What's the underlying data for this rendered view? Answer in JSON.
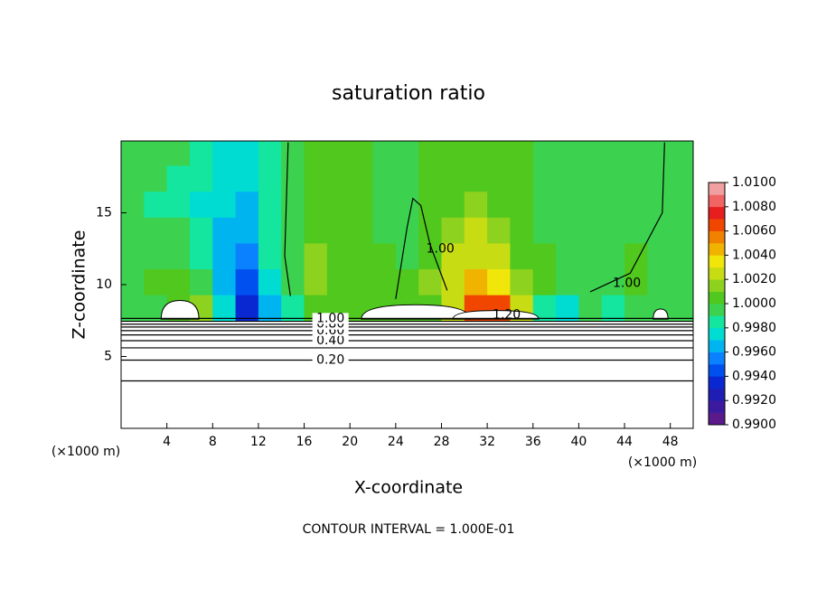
{
  "chart_data": {
    "type": "contour",
    "title": "saturation ratio",
    "x_label": "X-coordinate",
    "y_label": "Z-coordinate",
    "x_unit": "(×1000 m)",
    "y_unit": "(×1000 m)",
    "footer": "CONTOUR INTERVAL = 1.000E-01",
    "xlim": [
      0,
      50
    ],
    "ylim": [
      0,
      20
    ],
    "xticks": [
      4,
      8,
      12,
      16,
      20,
      24,
      28,
      32,
      36,
      40,
      44,
      48
    ],
    "yticks": [
      5,
      10,
      15
    ],
    "field": {
      "x_edges": [
        0,
        2,
        4,
        6,
        8,
        10,
        12,
        14,
        16,
        18,
        20,
        22,
        24,
        26,
        28,
        30,
        32,
        34,
        36,
        38,
        40,
        42,
        44,
        46,
        48,
        50
      ],
      "z_edges": [
        7.5,
        9.3,
        11.1,
        12.9,
        14.7,
        16.5,
        18.3,
        20
      ],
      "values": [
        [
          0.9995,
          0.9995,
          1.0005,
          1.0012,
          0.9975,
          0.9935,
          0.9965,
          0.9985,
          1.001,
          1.0,
          1.0005,
          1.0,
          1.0005,
          1.001,
          1.003,
          1.0062,
          1.006,
          1.002,
          0.9985,
          0.9975,
          0.999,
          0.9985,
          0.999,
          0.9995,
          0.9995
        ],
        [
          0.9995,
          1.0,
          1.0,
          0.999,
          0.996,
          0.9945,
          0.9975,
          0.9995,
          1.0018,
          1.0005,
          1.0,
          1.0,
          1.0005,
          1.0012,
          1.003,
          1.004,
          1.0035,
          1.0015,
          1.0,
          0.999,
          0.9995,
          0.9995,
          1.0,
          0.9995,
          0.9995
        ],
        [
          0.9995,
          0.9995,
          0.9995,
          0.9985,
          0.9965,
          0.9958,
          0.998,
          0.9998,
          1.0015,
          1.0005,
          1.0,
          1.0,
          0.9998,
          1.0008,
          1.0022,
          1.0028,
          1.0022,
          1.001,
          1.0,
          0.9995,
          0.999,
          0.9995,
          1.0,
          0.9995,
          0.9995
        ],
        [
          0.999,
          0.999,
          0.999,
          0.998,
          0.9968,
          0.9965,
          0.998,
          0.9995,
          1.001,
          1.0005,
          1.0,
          0.9998,
          0.9995,
          1.0005,
          1.0015,
          1.002,
          1.0015,
          1.0005,
          0.9998,
          0.9993,
          0.999,
          0.9993,
          0.9998,
          0.9995,
          0.9993
        ],
        [
          0.999,
          0.9988,
          0.9985,
          0.9978,
          0.997,
          0.9968,
          0.998,
          0.9993,
          1.0005,
          1.0003,
          1.0,
          0.9998,
          0.9995,
          1.0003,
          1.001,
          1.0012,
          1.001,
          1.0005,
          0.9998,
          0.9993,
          0.999,
          0.9993,
          0.9995,
          0.9993,
          0.9993
        ],
        [
          0.9992,
          0.999,
          0.9988,
          0.998,
          0.9972,
          0.997,
          0.9982,
          0.9993,
          1.0003,
          1.0002,
          1.0,
          0.9998,
          0.9996,
          1.0,
          1.0005,
          1.0008,
          1.0005,
          1.0002,
          0.9998,
          0.9994,
          0.9992,
          0.9993,
          0.9995,
          0.9995,
          0.9994
        ],
        [
          0.9993,
          0.9992,
          0.999,
          0.9983,
          0.9975,
          0.9975,
          0.9985,
          0.9995,
          1.0002,
          1.0,
          1.0,
          0.9998,
          0.9997,
          1.0,
          1.0003,
          1.0005,
          1.0003,
          1.0,
          0.9998,
          0.9995,
          0.9993,
          0.9994,
          0.9995,
          0.9995,
          0.9995
        ]
      ]
    },
    "colorbar": {
      "lim": [
        0.99,
        1.01
      ],
      "ticks": [
        {
          "value": 0.99,
          "label": "0.9900"
        },
        {
          "value": 0.992,
          "label": "0.9920"
        },
        {
          "value": 0.994,
          "label": "0.9940"
        },
        {
          "value": 0.996,
          "label": "0.9960"
        },
        {
          "value": 0.998,
          "label": "0.9980"
        },
        {
          "value": 1.0,
          "label": "1.0000"
        },
        {
          "value": 1.002,
          "label": "1.0020"
        },
        {
          "value": 1.004,
          "label": "1.0040"
        },
        {
          "value": 1.006,
          "label": "1.0060"
        },
        {
          "value": 1.008,
          "label": "1.0080"
        },
        {
          "value": 1.01,
          "label": "1.0100"
        }
      ],
      "colors": [
        "#5a1a8a",
        "#3c1aa0",
        "#1e1eb4",
        "#0a28d2",
        "#0050f0",
        "#0a82ff",
        "#00b4f0",
        "#00dcd2",
        "#14e6a0",
        "#3cd250",
        "#50c81e",
        "#8cd21e",
        "#c8dc14",
        "#f0e60a",
        "#f0b400",
        "#f08200",
        "#f04600",
        "#e61e1e",
        "#f06464",
        "#f0a0a0"
      ]
    },
    "contours": [
      {
        "level": 0.1,
        "label": null,
        "z": 3.3
      },
      {
        "level": 0.2,
        "label": "0.20",
        "z": 4.75
      },
      {
        "level": 0.3,
        "label": null,
        "z": 5.6
      },
      {
        "level": 0.4,
        "label": "0.40",
        "z": 6.1
      },
      {
        "level": 0.5,
        "label": null,
        "z": 6.5
      },
      {
        "level": 0.6,
        "label": "0.60",
        "z": 6.8
      },
      {
        "level": 0.7,
        "label": null,
        "z": 7.05
      },
      {
        "level": 0.8,
        "label": "0.80",
        "z": 7.25
      },
      {
        "level": 0.9,
        "label": null,
        "z": 7.45
      },
      {
        "level": 1.0,
        "label": "1.00",
        "z": 7.65
      }
    ],
    "annotations": [
      {
        "label": "1.20",
        "x": 33.7,
        "z": 7.9
      },
      {
        "label": "1.00",
        "x": 27.9,
        "z": 12.5
      },
      {
        "label": "1.00",
        "x": 44.2,
        "z": 10.1
      }
    ]
  }
}
